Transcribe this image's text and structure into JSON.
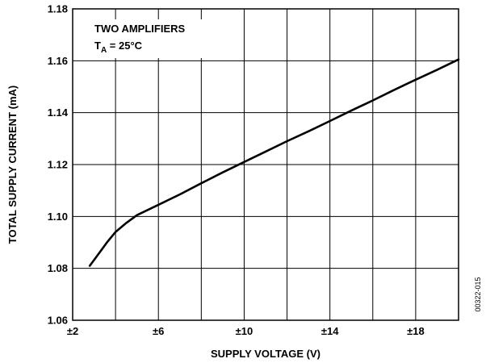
{
  "chart_data": {
    "type": "line",
    "xlabel": "SUPPLY VOLTAGE (V)",
    "ylabel": "TOTAL SUPPLY CURRENT (mA)",
    "xlim": [
      2,
      20
    ],
    "ylim": [
      1.06,
      1.18
    ],
    "x_ticks": [
      2,
      4,
      6,
      8,
      10,
      12,
      14,
      16,
      18,
      20
    ],
    "x_tick_labels": [
      "±2",
      "",
      "±6",
      "",
      "±10",
      "",
      "±14",
      "",
      "±18",
      ""
    ],
    "y_ticks": [
      1.06,
      1.08,
      1.1,
      1.12,
      1.14,
      1.16,
      1.18
    ],
    "y_tick_labels": [
      "1.06",
      "1.08",
      "1.10",
      "1.12",
      "1.14",
      "1.16",
      "1.18"
    ],
    "grid": true,
    "annotations": {
      "line1": "TWO AMPLIFIERS",
      "line2_main": "T",
      "line2_sub": "A",
      "line2_rest": " = 25°C"
    },
    "figure_id": "00322-015",
    "series": [
      {
        "x": [
          2.8,
          3.2,
          3.6,
          4.0,
          4.5,
          5.0,
          5.5,
          6.0,
          7.0,
          8.0,
          9.0,
          10.0,
          11.0,
          12.0,
          13.0,
          14.0,
          15.0,
          16.0,
          17.0,
          18.0,
          19.0,
          20.0
        ],
        "values": [
          1.081,
          1.0855,
          1.09,
          1.094,
          1.0975,
          1.1005,
          1.1025,
          1.1045,
          1.1085,
          1.1128,
          1.117,
          1.121,
          1.125,
          1.129,
          1.1328,
          1.1368,
          1.1408,
          1.1447,
          1.1488,
          1.1527,
          1.1565,
          1.1605
        ]
      }
    ]
  },
  "style": {
    "line_color": "#000000",
    "grid_color": "#000000",
    "background": "#ffffff"
  }
}
